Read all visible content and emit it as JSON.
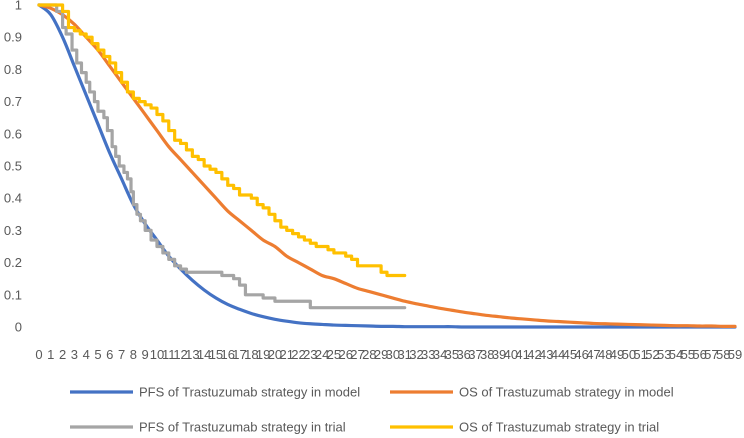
{
  "chart_data": {
    "type": "line",
    "title": "",
    "xlabel": "",
    "ylabel": "",
    "xlim": [
      0,
      59
    ],
    "ylim": [
      0,
      1
    ],
    "grid": false,
    "legend_position": "bottom",
    "x_ticks": [
      "0",
      "1",
      "2",
      "3",
      "4",
      "5",
      "6",
      "7",
      "8",
      "9",
      "10",
      "11",
      "12",
      "13",
      "14",
      "15",
      "16",
      "17",
      "18",
      "19",
      "20",
      "21",
      "22",
      "23",
      "24",
      "25",
      "26",
      "27",
      "28",
      "29",
      "30",
      "31",
      "32",
      "33",
      "34",
      "35",
      "36",
      "37",
      "38",
      "39",
      "40",
      "41",
      "42",
      "43",
      "44",
      "45",
      "46",
      "47",
      "48",
      "49",
      "50",
      "51",
      "52",
      "53",
      "54",
      "55",
      "56",
      "57",
      "58",
      "59"
    ],
    "y_ticks": [
      "0",
      "0.1",
      "0.2",
      "0.3",
      "0.4",
      "0.5",
      "0.6",
      "0.7",
      "0.8",
      "0.9",
      "1"
    ],
    "series": [
      {
        "name": "PFS of Trastuzumab strategy in model",
        "color": "#4472C4",
        "style": "smooth",
        "x": [
          0,
          1,
          2,
          3,
          4,
          5,
          6,
          7,
          8,
          9,
          10,
          11,
          12,
          13,
          14,
          15,
          16,
          17,
          18,
          19,
          20,
          21,
          22,
          23,
          24,
          25,
          26,
          27,
          28,
          29,
          30,
          31,
          32,
          33,
          34,
          35,
          36,
          37,
          38,
          39,
          40,
          42,
          44,
          46,
          48,
          50,
          52,
          54,
          56,
          58,
          59
        ],
        "y": [
          1.0,
          0.97,
          0.9,
          0.81,
          0.72,
          0.63,
          0.54,
          0.46,
          0.38,
          0.32,
          0.27,
          0.22,
          0.18,
          0.145,
          0.115,
          0.09,
          0.07,
          0.055,
          0.042,
          0.032,
          0.024,
          0.018,
          0.013,
          0.01,
          0.008,
          0.006,
          0.005,
          0.004,
          0.003,
          0.002,
          0.002,
          0.001,
          0.001,
          0.001,
          0.001,
          0.001,
          0.0,
          0.0,
          0.0,
          0.0,
          0.0,
          0.0,
          0.0,
          0.0,
          0.0,
          0.0,
          0.0,
          0.0,
          0.0,
          0.0,
          0.0
        ]
      },
      {
        "name": "OS of Trastuzumab strategy in model",
        "color": "#ED7D31",
        "style": "smooth",
        "x": [
          0,
          1,
          2,
          3,
          4,
          5,
          6,
          7,
          8,
          9,
          10,
          11,
          12,
          13,
          14,
          15,
          16,
          17,
          18,
          19,
          20,
          21,
          22,
          23,
          24,
          25,
          26,
          27,
          28,
          29,
          30,
          31,
          32,
          33,
          34,
          35,
          36,
          37,
          38,
          39,
          40,
          41,
          42,
          43,
          44,
          45,
          46,
          47,
          48,
          49,
          50,
          51,
          52,
          53,
          54,
          55,
          56,
          57,
          58,
          59
        ],
        "y": [
          1.0,
          0.99,
          0.97,
          0.94,
          0.9,
          0.86,
          0.81,
          0.76,
          0.71,
          0.66,
          0.61,
          0.56,
          0.52,
          0.48,
          0.44,
          0.4,
          0.36,
          0.33,
          0.3,
          0.27,
          0.25,
          0.22,
          0.2,
          0.18,
          0.16,
          0.15,
          0.135,
          0.12,
          0.11,
          0.1,
          0.09,
          0.08,
          0.072,
          0.065,
          0.058,
          0.052,
          0.046,
          0.041,
          0.036,
          0.032,
          0.028,
          0.025,
          0.022,
          0.019,
          0.017,
          0.015,
          0.013,
          0.011,
          0.01,
          0.009,
          0.008,
          0.007,
          0.006,
          0.005,
          0.004,
          0.004,
          0.003,
          0.003,
          0.002,
          0.002
        ]
      },
      {
        "name": "PFS of Trastuzumab strategy in trial",
        "color": "#A5A5A5",
        "style": "step",
        "x": [
          0,
          1,
          1.5,
          2,
          2.3,
          2.8,
          3.2,
          3.6,
          4,
          4.3,
          4.7,
          5,
          5.5,
          5.8,
          6.2,
          6.5,
          6.8,
          7.2,
          7.5,
          7.8,
          8,
          8.3,
          8.6,
          9,
          9.5,
          10,
          10.5,
          11,
          11.5,
          12,
          12.5,
          13,
          13.5,
          14,
          14.5,
          15,
          15.5,
          16,
          16.5,
          17,
          17.5,
          18,
          18.5,
          19,
          20,
          21,
          22,
          23,
          24,
          26,
          28,
          30,
          31
        ],
        "y": [
          1.0,
          1.0,
          0.98,
          0.93,
          0.91,
          0.86,
          0.82,
          0.79,
          0.76,
          0.73,
          0.7,
          0.67,
          0.65,
          0.61,
          0.56,
          0.53,
          0.5,
          0.48,
          0.46,
          0.42,
          0.38,
          0.35,
          0.33,
          0.3,
          0.27,
          0.25,
          0.23,
          0.21,
          0.19,
          0.18,
          0.17,
          0.17,
          0.17,
          0.17,
          0.17,
          0.17,
          0.16,
          0.16,
          0.15,
          0.13,
          0.1,
          0.1,
          0.1,
          0.09,
          0.08,
          0.08,
          0.08,
          0.06,
          0.06,
          0.06,
          0.06,
          0.06,
          0.06
        ]
      },
      {
        "name": "OS of Trastuzumab strategy in trial",
        "color": "#FFC000",
        "style": "step",
        "x": [
          0,
          1,
          2,
          2.5,
          3,
          3.5,
          4,
          4.5,
          5,
          5.5,
          6,
          6.5,
          7,
          7.5,
          8,
          8.5,
          9,
          9.5,
          10,
          10.5,
          11,
          11.5,
          12,
          12.5,
          13,
          13.5,
          14,
          14.5,
          15,
          15.5,
          16,
          16.5,
          17,
          17.5,
          18,
          18.5,
          19,
          19.5,
          20,
          20.5,
          21,
          21.5,
          22,
          22.5,
          23,
          23.5,
          24,
          24.5,
          25,
          25.5,
          26,
          26.5,
          27,
          27.5,
          28,
          28.5,
          29,
          29.5,
          30,
          31
        ],
        "y": [
          1.0,
          1.0,
          0.98,
          0.93,
          0.92,
          0.91,
          0.9,
          0.88,
          0.86,
          0.84,
          0.82,
          0.79,
          0.76,
          0.73,
          0.71,
          0.7,
          0.69,
          0.68,
          0.66,
          0.64,
          0.61,
          0.58,
          0.57,
          0.55,
          0.53,
          0.52,
          0.5,
          0.49,
          0.48,
          0.46,
          0.44,
          0.43,
          0.41,
          0.41,
          0.4,
          0.38,
          0.37,
          0.35,
          0.33,
          0.31,
          0.3,
          0.29,
          0.28,
          0.27,
          0.26,
          0.25,
          0.25,
          0.24,
          0.23,
          0.23,
          0.22,
          0.21,
          0.19,
          0.19,
          0.19,
          0.19,
          0.17,
          0.16,
          0.16,
          0.16
        ]
      }
    ]
  }
}
